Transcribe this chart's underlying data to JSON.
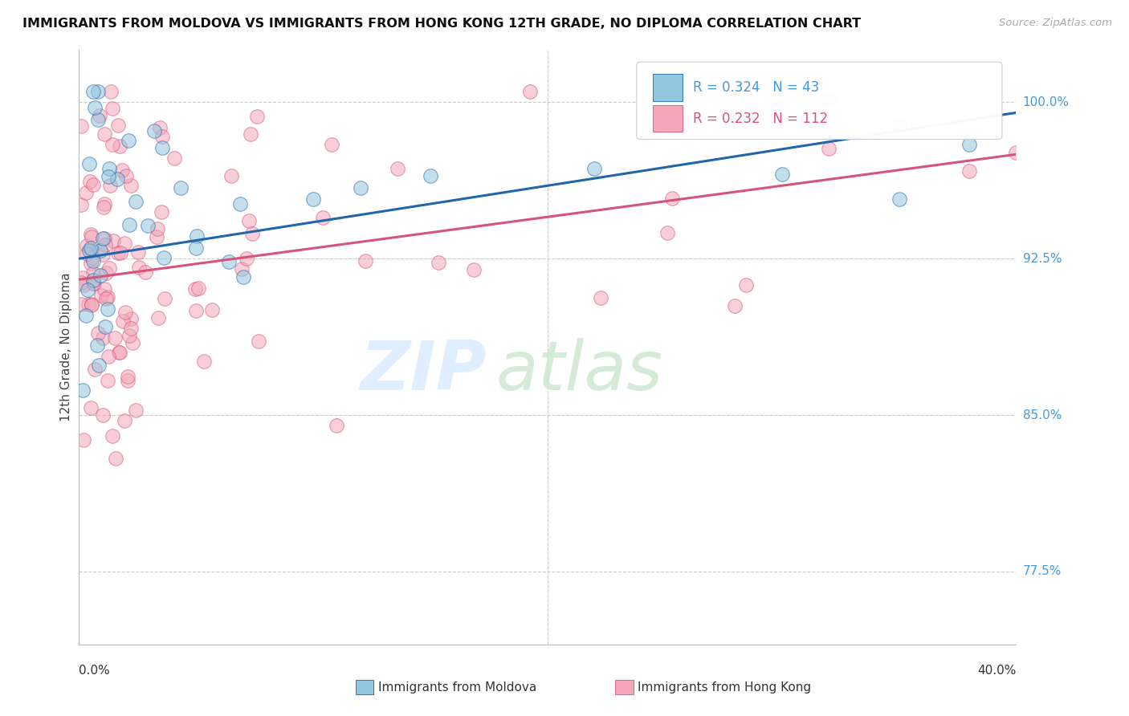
{
  "title": "IMMIGRANTS FROM MOLDOVA VS IMMIGRANTS FROM HONG KONG 12TH GRADE, NO DIPLOMA CORRELATION CHART",
  "source": "Source: ZipAtlas.com",
  "ylabel": "12th Grade, No Diploma",
  "ytick_labels": [
    "100.0%",
    "92.5%",
    "85.0%",
    "77.5%"
  ],
  "ytick_values": [
    1.0,
    0.925,
    0.85,
    0.775
  ],
  "xmin": 0.0,
  "xmax": 0.4,
  "ymin": 0.74,
  "ymax": 1.025,
  "legend_moldova": "Immigrants from Moldova",
  "legend_hongkong": "Immigrants from Hong Kong",
  "R_moldova": 0.324,
  "N_moldova": 43,
  "R_hongkong": 0.232,
  "N_hongkong": 112,
  "color_moldova": "#92c5de",
  "color_hongkong": "#f4a6b8",
  "color_moldova_line": "#2166ac",
  "color_hongkong_line": "#d6537a",
  "grid_color": "#cccccc",
  "right_label_color": "#4499dd",
  "wm_zip_color": "#ddeeff",
  "wm_atlas_color": "#cce8d0",
  "trend_moldova_x0": 0.0,
  "trend_moldova_y0": 0.925,
  "trend_moldova_x1": 0.4,
  "trend_moldova_y1": 0.995,
  "trend_hongkong_x0": 0.0,
  "trend_hongkong_y0": 0.915,
  "trend_hongkong_x1": 0.4,
  "trend_hongkong_y1": 0.975
}
